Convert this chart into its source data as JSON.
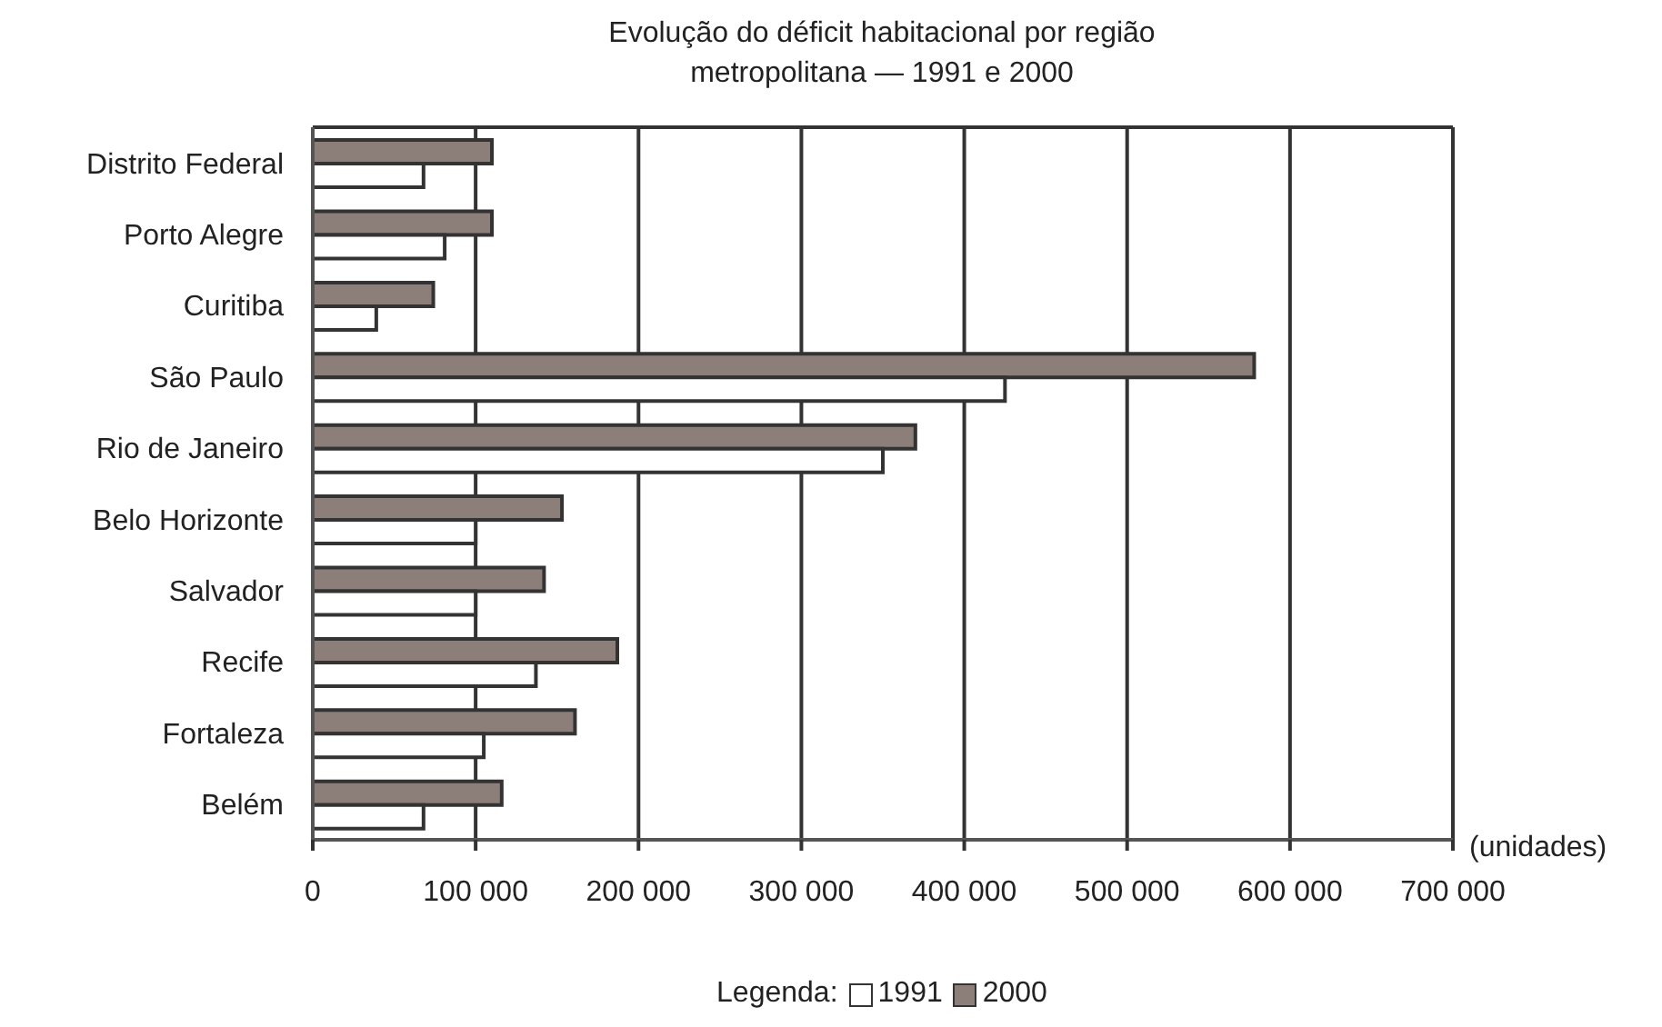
{
  "chart_data": {
    "type": "bar",
    "orientation": "horizontal",
    "title": "Evolução do déficit habitacional por região metropolitana — 1991 e 2000",
    "xlabel": "(unidades)",
    "legend_title": "Legenda:",
    "categories": [
      "Distrito Federal",
      "Porto Alegre",
      "Curitiba",
      "São Paulo",
      "Rio de Janeiro",
      "Belo Horizonte",
      "Salvador",
      "Recife",
      "Fortaleza",
      "Belém"
    ],
    "series": [
      {
        "name": "1991",
        "color": "#ffffff",
        "values": [
          68000,
          81000,
          39000,
          425000,
          350000,
          100000,
          100000,
          137000,
          105000,
          68000
        ]
      },
      {
        "name": "2000",
        "color": "#8c7f7a",
        "values": [
          110000,
          110000,
          74000,
          578000,
          370000,
          153000,
          142000,
          187000,
          161000,
          116000
        ]
      }
    ],
    "xlim": [
      0,
      700000
    ],
    "xticks": [
      0,
      {
        "value": 100000,
        "label": "100 000"
      },
      {
        "value": 200000,
        "label": "200 000"
      },
      {
        "value": 300000,
        "label": "300 000"
      },
      {
        "value": 400000,
        "label": "400 000"
      },
      {
        "value": 500000,
        "label": "500 000"
      },
      {
        "value": 600000,
        "label": "600 000"
      },
      {
        "value": 700000,
        "label": "700 000"
      }
    ],
    "grid": "x",
    "legend": "bottom"
  }
}
